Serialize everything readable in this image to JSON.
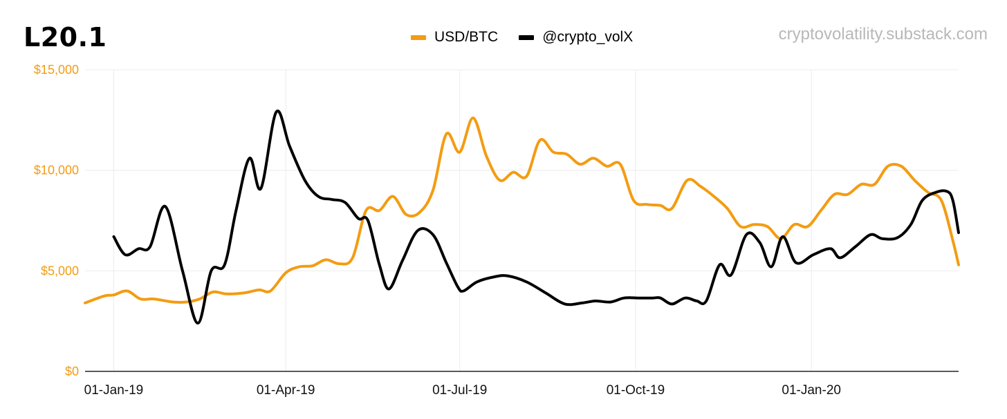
{
  "header": {
    "title": "L20.1",
    "watermark": "cryptovolatility.substack.com"
  },
  "colors": {
    "usd_btc": "#f39c12",
    "crypto_volx": "#000000",
    "grid": "#ececec",
    "axis_label": "#f39c12"
  },
  "chart_data": {
    "type": "line",
    "title": "L20.1",
    "x_domain": [
      "2018-12-17",
      "2020-03-18"
    ],
    "x_ticks": [
      {
        "date": "2019-01-01",
        "label": "01-Jan-19"
      },
      {
        "date": "2019-04-01",
        "label": "01-Apr-19"
      },
      {
        "date": "2019-07-01",
        "label": "01-Jul-19"
      },
      {
        "date": "2019-10-01",
        "label": "01-Oct-19"
      },
      {
        "date": "2020-01-01",
        "label": "01-Jan-20"
      }
    ],
    "ylim": [
      0,
      15000
    ],
    "y_ticks": [
      {
        "value": 0,
        "label": "$0"
      },
      {
        "value": 5000,
        "label": "$5,000"
      },
      {
        "value": 10000,
        "label": "$10,000"
      },
      {
        "value": 15000,
        "label": "$15,000"
      }
    ],
    "grid": true,
    "legend_position": "top-center",
    "series": [
      {
        "name": "USD/BTC",
        "color": "#f39c12",
        "points": [
          [
            "2018-12-17",
            3400
          ],
          [
            "2018-12-27",
            3750
          ],
          [
            "2019-01-01",
            3800
          ],
          [
            "2019-01-08",
            4000
          ],
          [
            "2019-01-15",
            3600
          ],
          [
            "2019-01-22",
            3600
          ],
          [
            "2019-02-01",
            3450
          ],
          [
            "2019-02-08",
            3450
          ],
          [
            "2019-02-15",
            3600
          ],
          [
            "2019-02-22",
            3950
          ],
          [
            "2019-03-01",
            3850
          ],
          [
            "2019-03-10",
            3900
          ],
          [
            "2019-03-18",
            4050
          ],
          [
            "2019-03-24",
            4000
          ],
          [
            "2019-04-01",
            4900
          ],
          [
            "2019-04-08",
            5200
          ],
          [
            "2019-04-15",
            5250
          ],
          [
            "2019-04-22",
            5550
          ],
          [
            "2019-04-29",
            5350
          ],
          [
            "2019-05-06",
            5650
          ],
          [
            "2019-05-13",
            8000
          ],
          [
            "2019-05-20",
            8000
          ],
          [
            "2019-05-27",
            8700
          ],
          [
            "2019-06-03",
            7800
          ],
          [
            "2019-06-10",
            7900
          ],
          [
            "2019-06-17",
            9000
          ],
          [
            "2019-06-24",
            11800
          ],
          [
            "2019-07-01",
            10900
          ],
          [
            "2019-07-08",
            12600
          ],
          [
            "2019-07-15",
            10700
          ],
          [
            "2019-07-22",
            9500
          ],
          [
            "2019-07-29",
            9900
          ],
          [
            "2019-08-05",
            9700
          ],
          [
            "2019-08-12",
            11500
          ],
          [
            "2019-08-19",
            10900
          ],
          [
            "2019-08-26",
            10800
          ],
          [
            "2019-09-02",
            10300
          ],
          [
            "2019-09-09",
            10600
          ],
          [
            "2019-09-16",
            10200
          ],
          [
            "2019-09-23",
            10300
          ],
          [
            "2019-09-30",
            8500
          ],
          [
            "2019-10-07",
            8300
          ],
          [
            "2019-10-14",
            8250
          ],
          [
            "2019-10-20",
            8100
          ],
          [
            "2019-10-28",
            9500
          ],
          [
            "2019-11-04",
            9200
          ],
          [
            "2019-11-11",
            8700
          ],
          [
            "2019-11-18",
            8100
          ],
          [
            "2019-11-25",
            7200
          ],
          [
            "2019-12-02",
            7300
          ],
          [
            "2019-12-09",
            7200
          ],
          [
            "2019-12-16",
            6600
          ],
          [
            "2019-12-23",
            7300
          ],
          [
            "2019-12-30",
            7200
          ],
          [
            "2020-01-06",
            8000
          ],
          [
            "2020-01-13",
            8800
          ],
          [
            "2020-01-20",
            8800
          ],
          [
            "2020-01-27",
            9300
          ],
          [
            "2020-02-03",
            9300
          ],
          [
            "2020-02-10",
            10200
          ],
          [
            "2020-02-17",
            10200
          ],
          [
            "2020-02-24",
            9500
          ],
          [
            "2020-03-02",
            8900
          ],
          [
            "2020-03-09",
            8500
          ],
          [
            "2020-03-15",
            6500
          ],
          [
            "2020-03-18",
            5300
          ]
        ]
      },
      {
        "name": "@crypto_volX",
        "color": "#000000",
        "points": [
          [
            "2019-01-01",
            6700
          ],
          [
            "2019-01-07",
            5800
          ],
          [
            "2019-01-14",
            6100
          ],
          [
            "2019-01-20",
            6200
          ],
          [
            "2019-01-28",
            8200
          ],
          [
            "2019-02-06",
            5000
          ],
          [
            "2019-02-14",
            2400
          ],
          [
            "2019-02-21",
            5000
          ],
          [
            "2019-02-28",
            5300
          ],
          [
            "2019-03-06",
            8000
          ],
          [
            "2019-03-13",
            10600
          ],
          [
            "2019-03-19",
            9100
          ],
          [
            "2019-03-27",
            12900
          ],
          [
            "2019-04-03",
            11200
          ],
          [
            "2019-04-11",
            9500
          ],
          [
            "2019-04-18",
            8700
          ],
          [
            "2019-04-25",
            8550
          ],
          [
            "2019-05-02",
            8400
          ],
          [
            "2019-05-09",
            7600
          ],
          [
            "2019-05-14",
            7500
          ],
          [
            "2019-05-20",
            5300
          ],
          [
            "2019-05-25",
            4100
          ],
          [
            "2019-06-01",
            5500
          ],
          [
            "2019-06-09",
            7000
          ],
          [
            "2019-06-17",
            6800
          ],
          [
            "2019-06-24",
            5400
          ],
          [
            "2019-06-30",
            4200
          ],
          [
            "2019-07-03",
            4000
          ],
          [
            "2019-07-10",
            4450
          ],
          [
            "2019-07-19",
            4700
          ],
          [
            "2019-07-26",
            4750
          ],
          [
            "2019-08-05",
            4450
          ],
          [
            "2019-08-15",
            3900
          ],
          [
            "2019-08-25",
            3350
          ],
          [
            "2019-09-03",
            3400
          ],
          [
            "2019-09-10",
            3500
          ],
          [
            "2019-09-18",
            3450
          ],
          [
            "2019-09-25",
            3650
          ],
          [
            "2019-10-03",
            3650
          ],
          [
            "2019-10-10",
            3650
          ],
          [
            "2019-10-14",
            3650
          ],
          [
            "2019-10-20",
            3350
          ],
          [
            "2019-10-27",
            3650
          ],
          [
            "2019-11-02",
            3500
          ],
          [
            "2019-11-07",
            3500
          ],
          [
            "2019-11-14",
            5300
          ],
          [
            "2019-11-20",
            4800
          ],
          [
            "2019-11-28",
            6800
          ],
          [
            "2019-12-05",
            6400
          ],
          [
            "2019-12-11",
            5200
          ],
          [
            "2019-12-17",
            6700
          ],
          [
            "2019-12-24",
            5400
          ],
          [
            "2020-01-02",
            5800
          ],
          [
            "2020-01-11",
            6100
          ],
          [
            "2020-01-16",
            5650
          ],
          [
            "2020-01-24",
            6200
          ],
          [
            "2020-02-01",
            6800
          ],
          [
            "2020-02-07",
            6600
          ],
          [
            "2020-02-15",
            6650
          ],
          [
            "2020-02-22",
            7300
          ],
          [
            "2020-02-28",
            8500
          ],
          [
            "2020-03-06",
            8900
          ],
          [
            "2020-03-12",
            8950
          ],
          [
            "2020-03-15",
            8500
          ],
          [
            "2020-03-18",
            6900
          ]
        ]
      }
    ]
  }
}
